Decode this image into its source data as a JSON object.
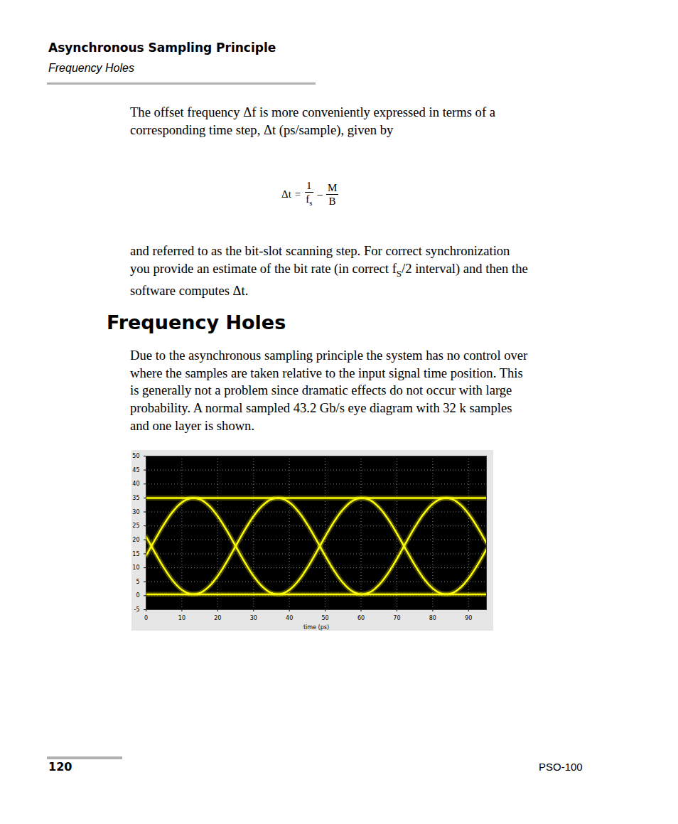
{
  "header": {
    "title": "Asynchronous Sampling Principle",
    "subtitle": "Frequency Holes"
  },
  "paragraph1": [
    [
      "The offset frequency Δf is more conveniently expressed in terms of a"
    ],
    [
      "corresponding time step, Δt (ps/sample), given by"
    ]
  ],
  "formula": {
    "lhs": "Δt",
    "sign": "=",
    "fraction1": {
      "num": "1",
      "den": "f",
      "den_sub": "s"
    },
    "operator": "–",
    "fraction2": {
      "num": "M",
      "den": "B"
    }
  },
  "paragraph2": [
    [
      "and referred to as the bit-slot scanning step. For correct synchronization"
    ],
    [
      "you provide an estimate of the bit rate (in correct f",
      {
        "sub": "S"
      },
      "/2 interval) and then the"
    ],
    [
      "software computes Δt."
    ]
  ],
  "heading": "Frequency Holes",
  "paragraph3": [
    [
      "Due to the asynchronous sampling principle the system has no control over"
    ],
    [
      "where the samples are taken relative to the input signal time position. This"
    ],
    [
      "is generally not a problem since dramatic effects do not occur with large"
    ],
    [
      "probability. A normal sampled 43.2 Gb/s eye diagram with 32 k samples"
    ],
    [
      "and one layer is shown."
    ]
  ],
  "chart_data": {
    "type": "line",
    "xlabel": "time (ps)",
    "x": [
      0,
      2.5,
      5,
      7.5,
      10,
      12.5,
      15,
      17.5,
      20,
      22.5,
      25,
      27.5,
      30,
      32.5,
      35,
      37.5,
      40,
      42.5,
      45,
      47.5,
      50,
      52.5,
      55,
      57.5,
      60,
      62.5,
      65,
      67.5,
      70,
      72.5,
      75,
      77.5,
      80,
      82.5,
      85,
      87.5,
      90,
      92.5,
      95
    ],
    "series": [
      {
        "color": "#ffff00",
        "values": [
          35,
          35,
          35,
          35,
          35,
          35,
          35,
          35,
          35,
          35,
          35,
          35,
          35,
          35,
          35,
          35,
          35,
          35,
          35,
          35,
          35,
          35,
          35,
          35,
          35,
          35,
          35,
          35,
          35,
          35,
          35,
          35,
          35,
          35,
          35,
          35,
          35,
          35,
          35
        ]
      },
      {
        "color": "#ffff00",
        "values": [
          0.5,
          0.5,
          0.5,
          0.5,
          0.5,
          0.5,
          0.5,
          0.5,
          0.5,
          0.5,
          0.5,
          0.5,
          0.5,
          0.5,
          0.5,
          0.5,
          0.5,
          0.5,
          0.5,
          0.5,
          0.5,
          0.5,
          0.5,
          0.5,
          0.5,
          0.5,
          0.5,
          0.5,
          0.5,
          0.5,
          0.5,
          0.5,
          0.5,
          0.5,
          0.5,
          0.5,
          0.5,
          0.5,
          0.5
        ]
      },
      {
        "color": "#ffff00",
        "values": [
          21.19,
          15.45,
          9.97,
          5.35,
          2.1,
          0.59,
          0.97,
          3.21,
          7.06,
          12.09,
          17.75,
          23.41,
          28.44,
          32.29,
          34.53,
          34.91,
          33.4,
          30.15,
          25.53,
          20.05,
          14.31,
          8.95,
          4.57,
          1.65,
          0.51,
          1.27,
          3.87,
          7.99,
          13.2,
          18.91,
          24.49,
          29.32,
          32.88,
          34.76,
          34.76,
          32.87,
          29.31,
          24.48,
          18.89
        ]
      },
      {
        "color": "#ffff00",
        "values": [
          14.31,
          20.05,
          25.53,
          30.15,
          33.4,
          34.91,
          34.53,
          32.29,
          28.44,
          23.41,
          17.75,
          12.09,
          7.06,
          3.21,
          0.97,
          0.59,
          2.1,
          5.35,
          9.97,
          15.45,
          21.19,
          26.55,
          30.93,
          33.85,
          34.99,
          34.23,
          31.63,
          27.51,
          22.3,
          16.59,
          11.01,
          6.18,
          2.62,
          0.74,
          0.74,
          2.63,
          6.19,
          11.02,
          16.61
        ]
      }
    ],
    "xlim": [
      0,
      95
    ],
    "xticks": [
      0,
      10,
      20,
      30,
      40,
      50,
      60,
      70,
      80,
      90
    ],
    "ylim": [
      -5,
      50
    ],
    "yticks": [
      -5,
      0,
      5,
      10,
      15,
      20,
      25,
      30,
      35,
      40,
      45,
      50
    ],
    "grid": true
  },
  "footer": {
    "page": "120",
    "doc": "PSO-100"
  }
}
